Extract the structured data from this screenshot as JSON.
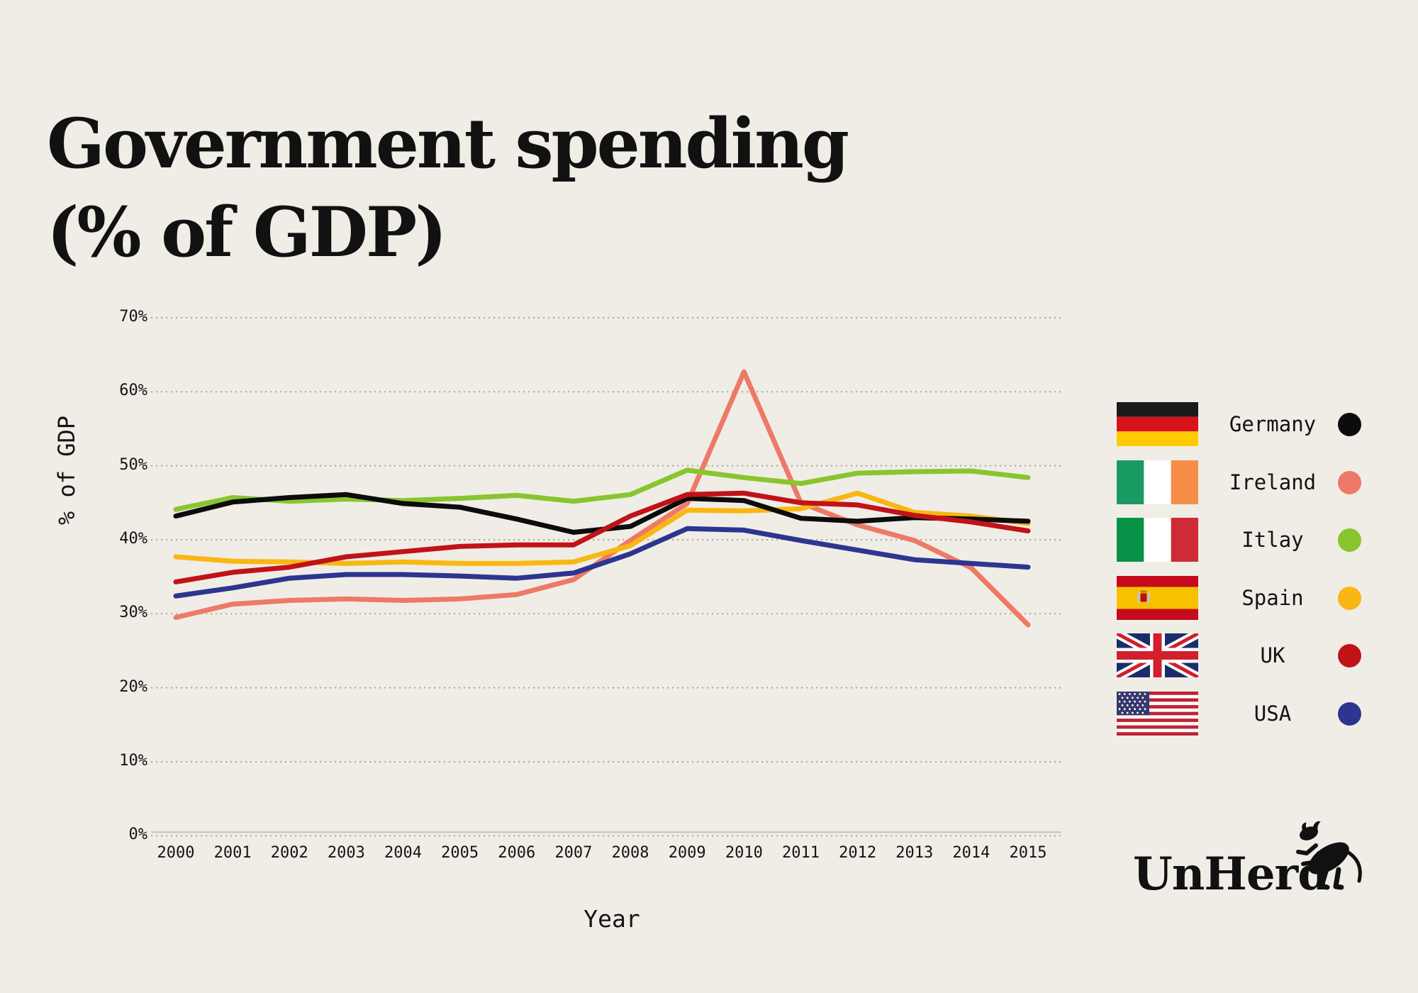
{
  "title": {
    "line1": "Government spending",
    "line2": "(% of GDP)"
  },
  "colors": {
    "background": "#f0ede6",
    "grid": "#a9a59d",
    "axis_line": "#c6c2ba",
    "text": "#141414"
  },
  "chart_data": {
    "type": "line",
    "title": "Government spending (% of GDP)",
    "xlabel": "Year",
    "ylabel": "% of GDP",
    "x": [
      2000,
      2001,
      2002,
      2003,
      2004,
      2005,
      2006,
      2007,
      2008,
      2009,
      2010,
      2011,
      2012,
      2013,
      2014,
      2015
    ],
    "y_ticks": [
      "0%",
      "10%",
      "20%",
      "30%",
      "40%",
      "50%",
      "60%",
      "70%"
    ],
    "ylim": [
      0,
      70
    ],
    "grid": "horizontal dotted",
    "legend_position": "right",
    "series": [
      {
        "name": "Germany",
        "color": "#0c0c0c",
        "values": [
          43.2,
          45.1,
          45.7,
          46.1,
          44.9,
          44.4,
          42.8,
          41.0,
          41.8,
          45.6,
          45.3,
          42.9,
          42.5,
          43.0,
          42.8,
          42.5
        ]
      },
      {
        "name": "Ireland",
        "color": "#ED7A66",
        "values": [
          29.5,
          31.3,
          31.8,
          32.0,
          31.8,
          32.0,
          32.6,
          34.6,
          39.9,
          44.9,
          62.7,
          45.0,
          42.0,
          39.9,
          36.2,
          28.5
        ]
      },
      {
        "name": "Itlay",
        "color": "#89C52F",
        "values": [
          44.1,
          45.7,
          45.2,
          45.5,
          45.3,
          45.6,
          46.0,
          45.2,
          46.1,
          49.4,
          48.4,
          47.6,
          49.0,
          49.2,
          49.3,
          48.4
        ]
      },
      {
        "name": "Spain",
        "color": "#F8B712",
        "values": [
          37.7,
          37.1,
          37.0,
          36.8,
          37.0,
          36.8,
          36.8,
          37.0,
          39.2,
          44.0,
          43.9,
          44.2,
          46.3,
          43.7,
          43.2,
          42.2
        ]
      },
      {
        "name": "UK",
        "color": "#C01318",
        "values": [
          34.3,
          35.6,
          36.3,
          37.7,
          38.4,
          39.1,
          39.3,
          39.3,
          43.2,
          46.1,
          46.3,
          45.0,
          44.7,
          43.3,
          42.4,
          41.2
        ]
      },
      {
        "name": "USA",
        "color": "#2D3591",
        "values": [
          32.4,
          33.5,
          34.8,
          35.3,
          35.3,
          35.1,
          34.8,
          35.5,
          38.1,
          41.5,
          41.3,
          39.9,
          38.6,
          37.3,
          36.8,
          36.3
        ]
      }
    ]
  },
  "legend": {
    "items": [
      {
        "label": "Germany",
        "flag": "germany-flag",
        "color": "#0c0c0c"
      },
      {
        "label": "Ireland",
        "flag": "ireland-flag",
        "color": "#ED7A66"
      },
      {
        "label": "Itlay",
        "flag": "italy-flag",
        "color": "#89C52F"
      },
      {
        "label": "Spain",
        "flag": "spain-flag",
        "color": "#F8B712"
      },
      {
        "label": "UK",
        "flag": "uk-flag",
        "color": "#C01318"
      },
      {
        "label": "USA",
        "flag": "usa-flag",
        "color": "#2D3591"
      }
    ]
  },
  "branding": {
    "logo_text": "UnHerd"
  }
}
